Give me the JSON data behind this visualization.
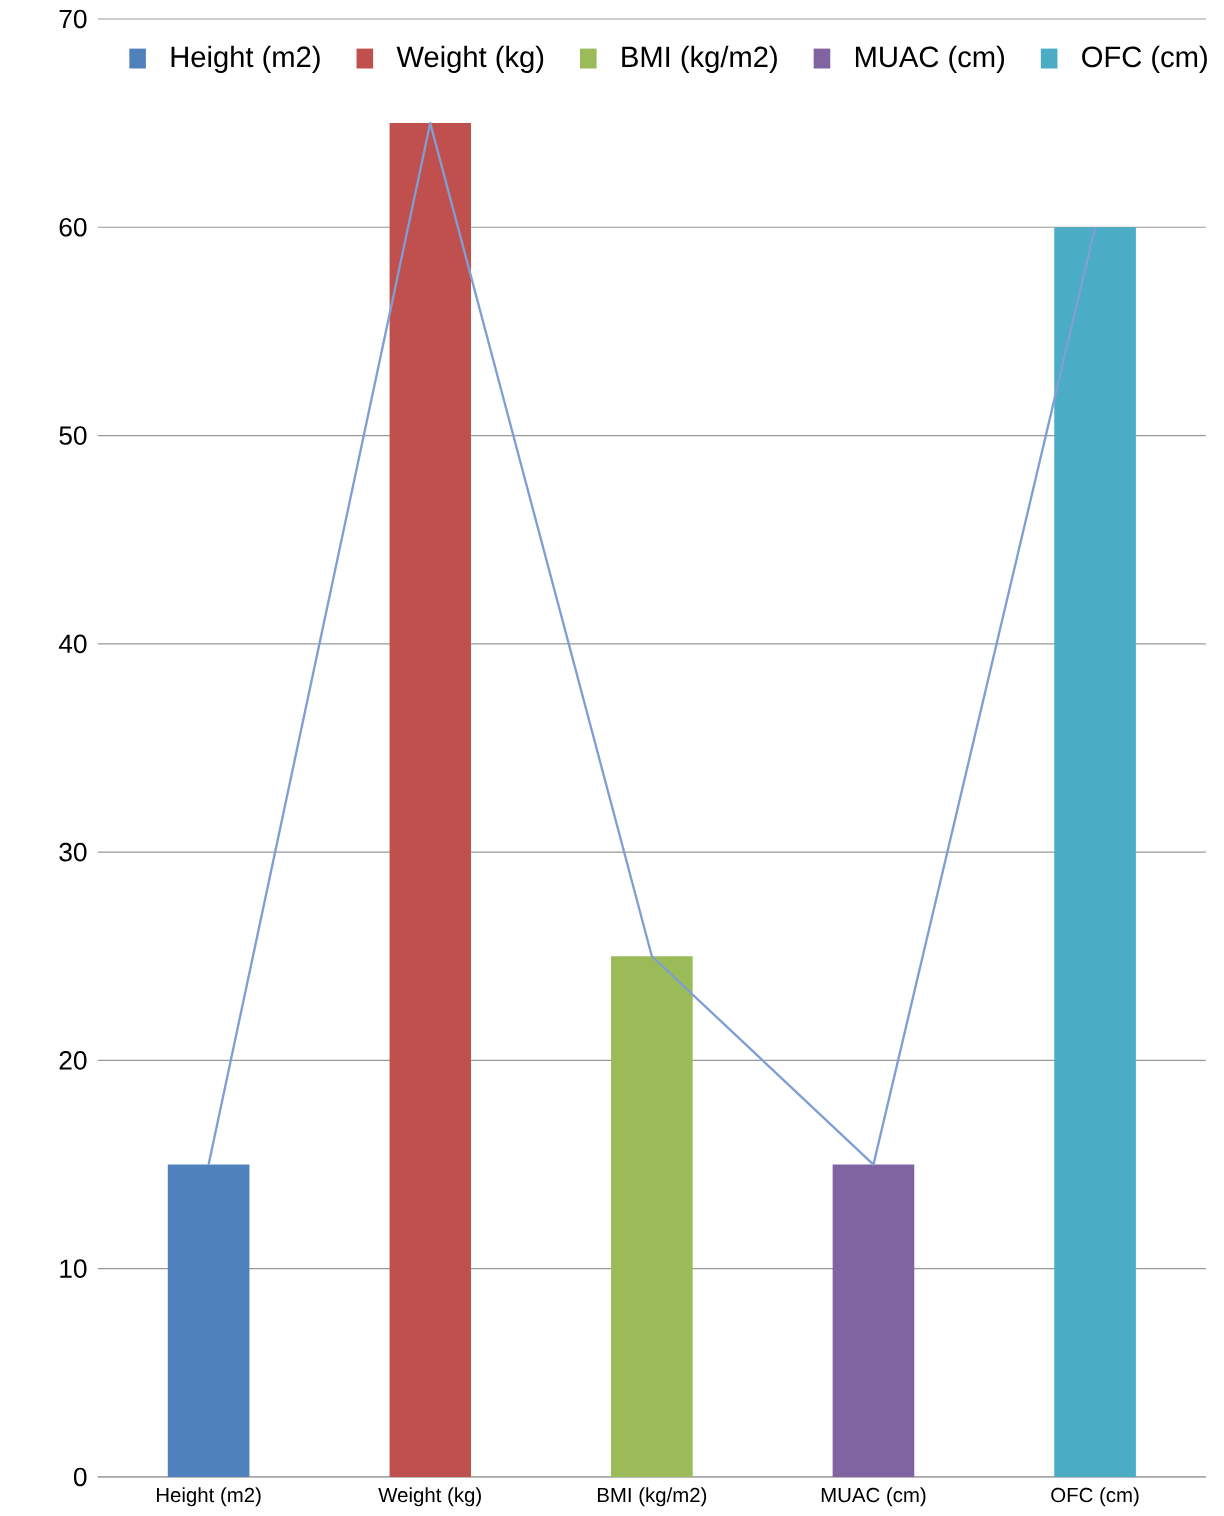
{
  "chart_data": {
    "type": "bar",
    "categories": [
      "Height (m2)",
      "Weight (kg)",
      "BMI (kg/m2)",
      "MUAC (cm)",
      "OFC (cm)"
    ],
    "series": [
      {
        "type": "line",
        "color": "#7f9ed4",
        "values": [
          15,
          65,
          25,
          15,
          60
        ]
      },
      {
        "name": "Height (m2)",
        "color": "#4f81bd",
        "values": [
          15,
          null,
          null,
          null,
          null
        ]
      },
      {
        "name": "Weight (kg)",
        "color": "#c0504d",
        "values": [
          null,
          65,
          null,
          null,
          null
        ]
      },
      {
        "name": "BMI (kg/m2)",
        "color": "#9bbb59",
        "values": [
          null,
          null,
          25,
          null,
          null
        ]
      },
      {
        "name": "MUAC (cm)",
        "color": "#8064a2",
        "values": [
          null,
          null,
          null,
          15,
          null
        ]
      },
      {
        "name": "OFC (cm)",
        "color": "#4bacc6",
        "values": [
          null,
          null,
          null,
          null,
          60
        ]
      }
    ],
    "ylim": [
      0,
      70
    ],
    "yticks": [
      0,
      10,
      20,
      30,
      40,
      50,
      60,
      70
    ],
    "grid": "y",
    "legend": "top left"
  }
}
